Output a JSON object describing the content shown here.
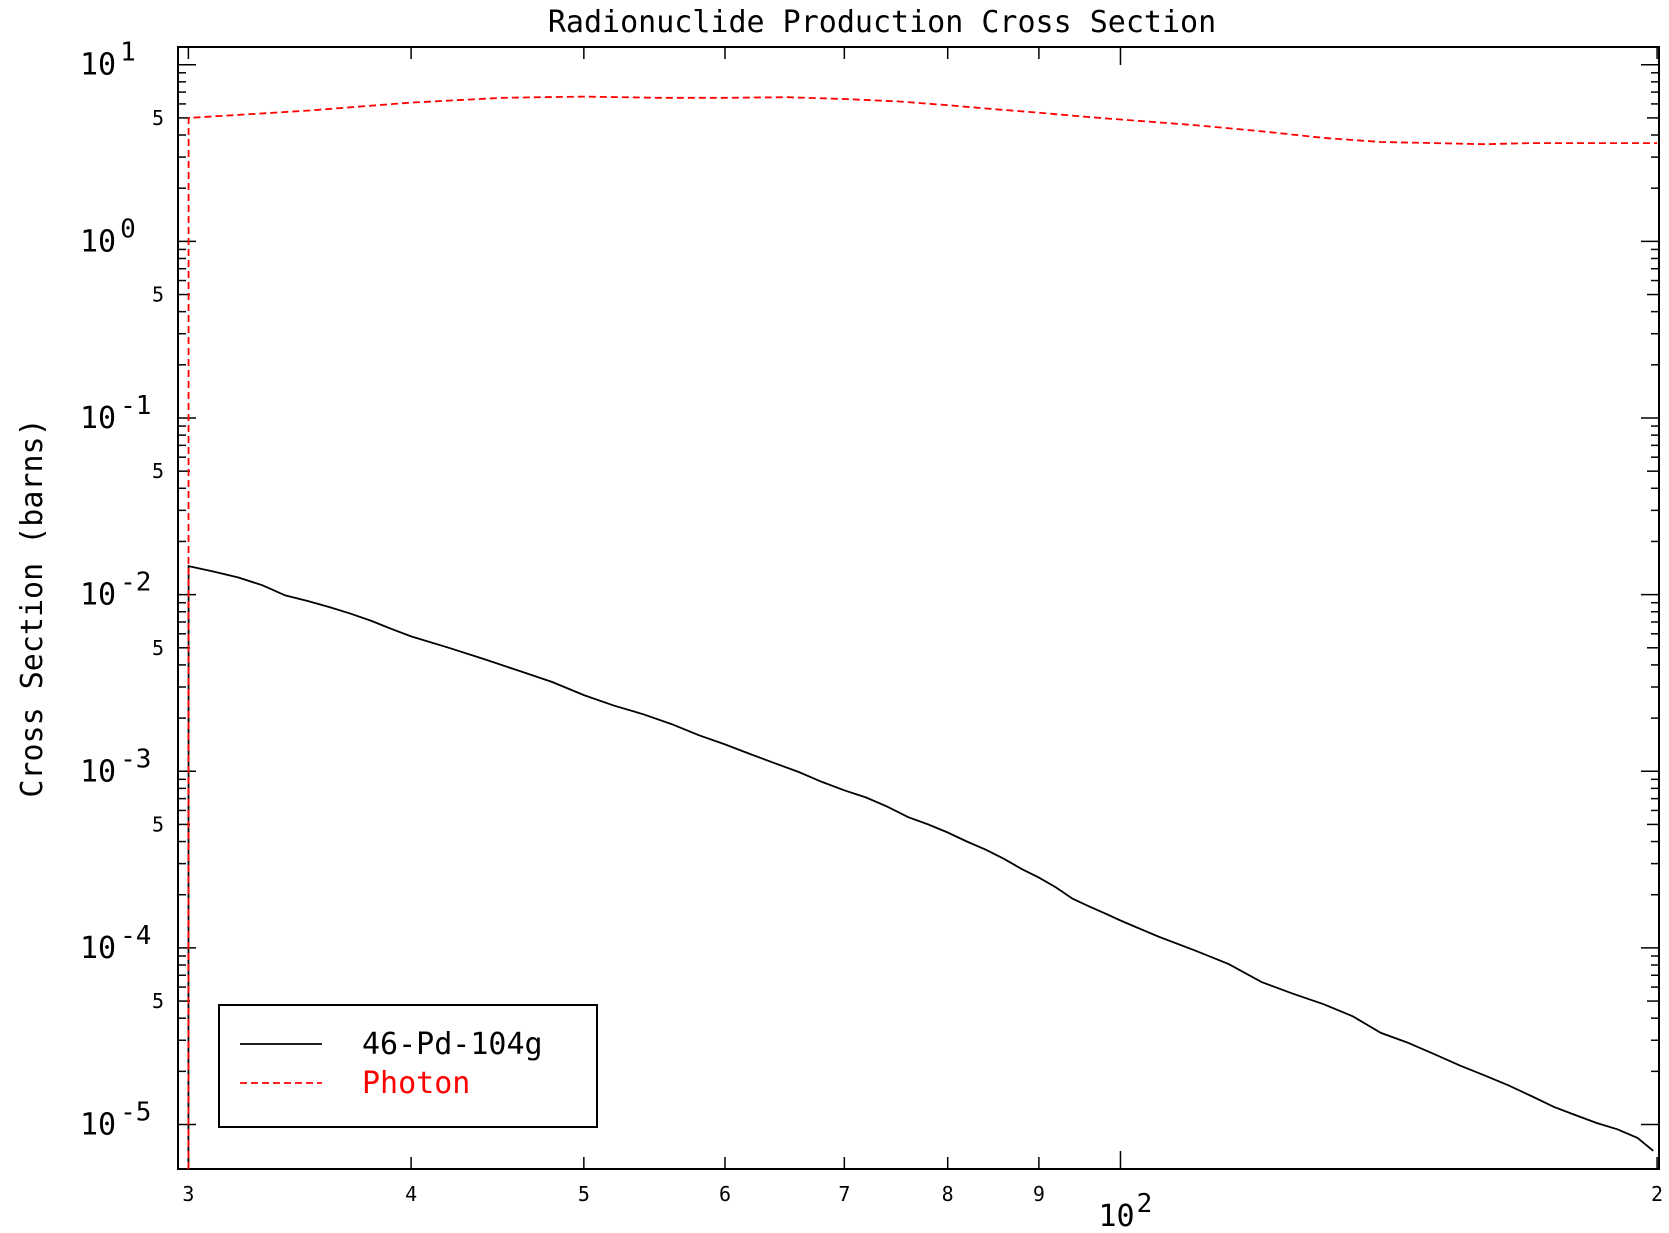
{
  "chart_data": {
    "type": "line",
    "title": "Radionuclide Production Cross Section",
    "xlabel": "",
    "ylabel": "Cross Section (barns)",
    "xscale": "log",
    "yscale": "log",
    "xlim": [
      29.6,
      200.5
    ],
    "ylim": [
      5.6e-06,
      12.6
    ],
    "x_ticks": [
      {
        "value": 30,
        "label": "3"
      },
      {
        "value": 40,
        "label": "4"
      },
      {
        "value": 50,
        "label": "5"
      },
      {
        "value": 60,
        "label": "6"
      },
      {
        "value": 70,
        "label": "7"
      },
      {
        "value": 80,
        "label": "8"
      },
      {
        "value": 90,
        "label": "9"
      },
      {
        "value": 200,
        "label": "2"
      }
    ],
    "x_decade_label": {
      "value": 100,
      "base": "10",
      "exp": "2"
    },
    "y_ticks": [
      {
        "value": 10,
        "base": "10",
        "exp": "1"
      },
      {
        "value": 1,
        "base": "10",
        "exp": "0"
      },
      {
        "value": 0.1,
        "base": "10",
        "exp": "-1"
      },
      {
        "value": 0.01,
        "base": "10",
        "exp": "-2"
      },
      {
        "value": 0.001,
        "base": "10",
        "exp": "-3"
      },
      {
        "value": 0.0001,
        "base": "10",
        "exp": "-4"
      },
      {
        "value": 1e-05,
        "base": "10",
        "exp": "-5"
      }
    ],
    "y_minor_label": "5",
    "grid": false,
    "legend_position": "bottom-left",
    "series": [
      {
        "name": "46-Pd-104g",
        "color": "#000000",
        "style": "solid",
        "x": [
          30,
          30.01,
          31,
          32,
          33,
          34,
          35,
          36,
          37,
          38,
          39,
          40,
          42,
          44,
          46,
          48,
          50,
          52,
          54,
          56,
          58,
          60,
          62,
          64,
          66,
          68,
          70,
          72,
          74,
          76,
          78,
          80,
          82,
          84,
          86,
          88,
          90,
          92,
          94,
          96,
          98,
          100,
          105,
          110,
          115,
          120,
          125,
          130,
          135,
          140,
          145,
          150,
          155,
          160,
          165,
          170,
          175,
          180,
          185,
          190,
          195,
          199
        ],
        "y": [
          5.6e-06,
          0.0145,
          0.0135,
          0.0125,
          0.0113,
          0.0099,
          0.0092,
          0.0085,
          0.0078,
          0.0071,
          0.0064,
          0.0058,
          0.005,
          0.0043,
          0.0037,
          0.0032,
          0.0027,
          0.00235,
          0.0021,
          0.00185,
          0.0016,
          0.00142,
          0.00125,
          0.00111,
          0.00099,
          0.00087,
          0.00078,
          0.00071,
          0.00063,
          0.00055,
          0.0005,
          0.00045,
          0.0004,
          0.00036,
          0.00032,
          0.00028,
          0.00025,
          0.00022,
          0.00019,
          0.000172,
          0.000157,
          0.000143,
          0.000116,
          9.7e-05,
          8.1e-05,
          6.4e-05,
          5.5e-05,
          4.8e-05,
          4.1e-05,
          3.3e-05,
          2.9e-05,
          2.5e-05,
          2.16e-05,
          1.9e-05,
          1.67e-05,
          1.45e-05,
          1.26e-05,
          1.13e-05,
          1.02e-05,
          9.4e-06,
          8.4e-06,
          7.1e-06
        ]
      },
      {
        "name": "Photon",
        "color": "#ff0000",
        "style": "dashed",
        "x": [
          30,
          30.01,
          32,
          35,
          40,
          45,
          50,
          55,
          60,
          65,
          70,
          75,
          80,
          85,
          90,
          95,
          100,
          110,
          120,
          130,
          140,
          150,
          160,
          170,
          180,
          190,
          200
        ],
        "y": [
          5.6e-06,
          5.0,
          5.2,
          5.5,
          6.1,
          6.5,
          6.6,
          6.5,
          6.5,
          6.55,
          6.4,
          6.2,
          5.9,
          5.6,
          5.35,
          5.1,
          4.9,
          4.55,
          4.2,
          3.85,
          3.65,
          3.6,
          3.55,
          3.6,
          3.6,
          3.6,
          3.6
        ]
      }
    ]
  }
}
